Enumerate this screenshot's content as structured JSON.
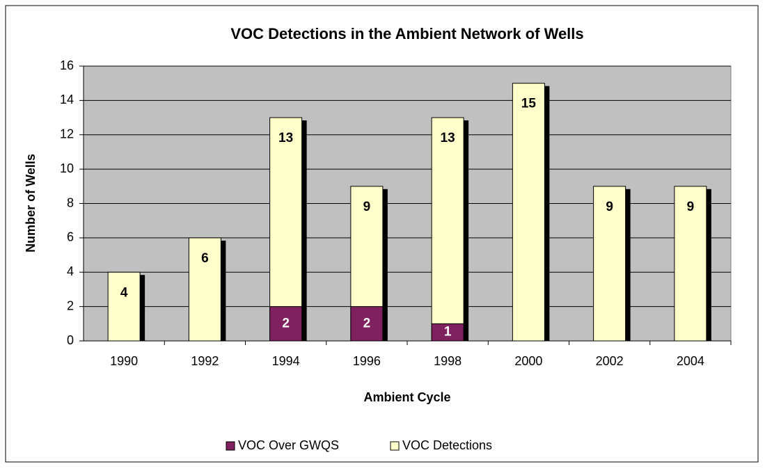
{
  "chart_data": {
    "type": "bar",
    "title": "VOC Detections in the Ambient Network of Wells",
    "x_label": "Ambient Cycle",
    "y_label": "Number of Wells",
    "categories": [
      "1990",
      "1992",
      "1994",
      "1996",
      "1998",
      "2000",
      "2002",
      "2004"
    ],
    "series": [
      {
        "name": "VOC Detections",
        "color": "#ffffcc",
        "values": [
          4,
          6,
          13,
          9,
          13,
          15,
          9,
          9
        ]
      },
      {
        "name": "VOC Over GWQS",
        "color": "#80215f",
        "values": [
          null,
          null,
          2,
          2,
          1,
          null,
          null,
          null
        ]
      }
    ],
    "overlap": true,
    "legend_order": [
      1,
      0
    ],
    "ylim": [
      0,
      16
    ],
    "yticks": [
      0,
      2,
      4,
      6,
      8,
      10,
      12,
      14,
      16
    ],
    "grid": true,
    "legend": "bottom",
    "plot_background": "#c0c0c0"
  }
}
